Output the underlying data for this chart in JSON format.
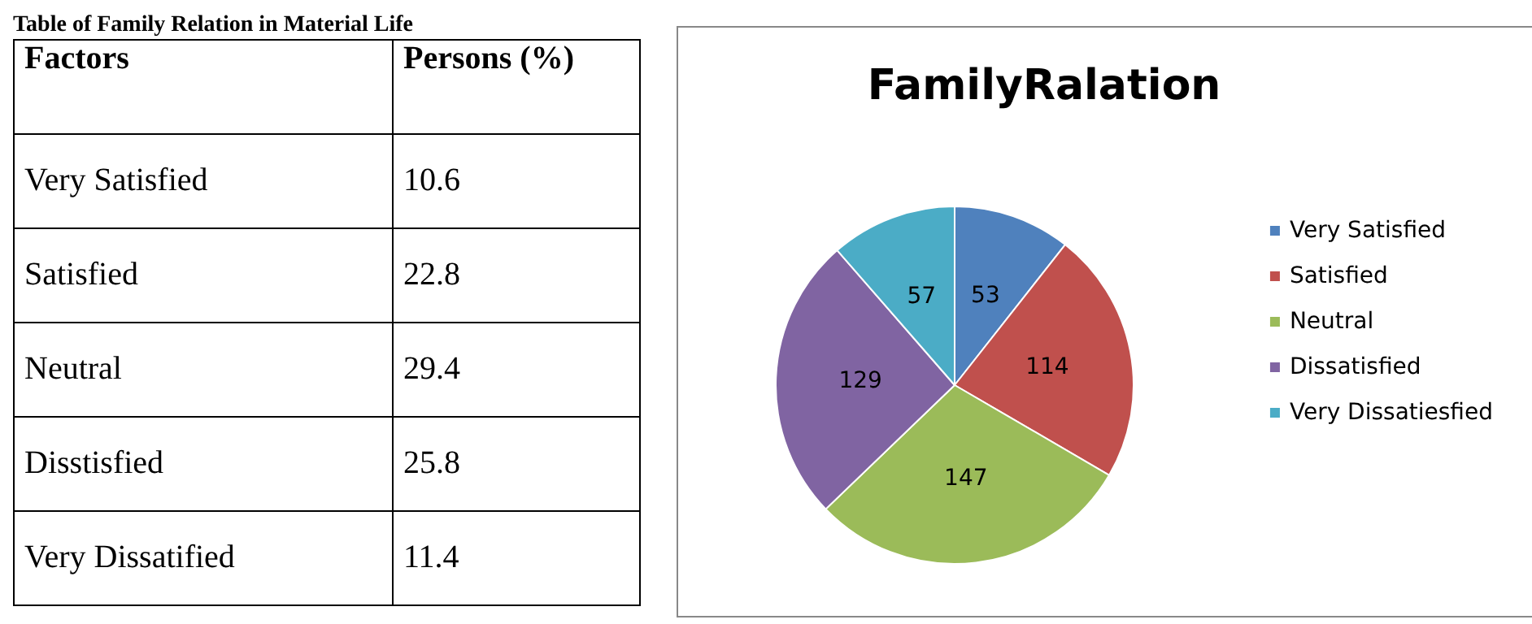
{
  "chart_data": [
    {
      "type": "other",
      "title": "Table of Family Relation in Material Life",
      "xlabel": "Factors",
      "ylabel": "Persons (%)",
      "categories": [
        "Very Satisfied",
        "Satisfied",
        "Neutral",
        "Disstisfied",
        "Very Dissatified"
      ],
      "values": [
        10.6,
        22.8,
        29.4,
        25.8,
        11.4
      ],
      "data_labels": true
    },
    {
      "type": "pie",
      "title": "FamilyRalation",
      "categories": [
        "Very Satisfied",
        "Satisfied",
        "Neutral",
        "Dissatisfied",
        "Very Dissatiesfied"
      ],
      "values": [
        53,
        114,
        147,
        129,
        57
      ],
      "colors": [
        "#4f81bd",
        "#c0504d",
        "#9bbb59",
        "#8064a2",
        "#4bacc6"
      ],
      "data_labels": true,
      "legend": "right"
    }
  ]
}
